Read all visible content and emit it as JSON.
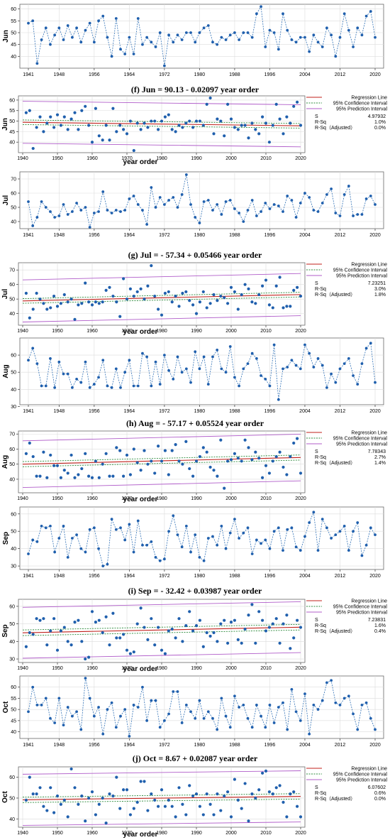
{
  "colors": {
    "series": "#2e6fb5",
    "points": "#1f5fad",
    "regression": "#c0201b",
    "confidence": "#2e8b3d",
    "prediction": "#b05cc9",
    "grid": "#dcdcdc"
  },
  "legend": {
    "regression": "Regression Line",
    "confidence": "95% Confidence Interval",
    "prediction": "95% Prediction Interval"
  },
  "stat_labels": {
    "s": "S",
    "rsq": "R-Sq",
    "rsq_adj": "R-Sq（Adjusted）"
  },
  "year_order_label": "year order",
  "chart_data": [
    {
      "id": "jun",
      "ylabel": "Jun",
      "type": "line",
      "ylim": [
        35,
        62
      ],
      "yticks": [
        40,
        45,
        50,
        55,
        60
      ],
      "xticks": [
        1941,
        1948,
        1956,
        1964,
        1972,
        1980,
        1988,
        1996,
        2004,
        2012,
        2020
      ],
      "x_start": 1941,
      "x_end": 2020,
      "values": [
        54,
        55,
        37,
        47,
        52,
        45,
        49,
        52,
        47,
        53,
        48,
        52,
        46,
        51,
        54,
        46,
        55,
        57,
        48,
        40,
        56,
        43,
        41,
        48,
        41,
        56,
        45,
        48,
        46,
        44,
        50,
        36,
        49,
        46,
        49,
        47,
        50,
        50,
        46,
        50,
        52,
        53,
        46,
        45,
        48,
        47,
        49,
        50,
        47,
        50,
        50,
        48,
        58,
        61,
        44,
        51,
        50,
        43,
        58,
        51,
        47,
        46,
        48,
        48,
        42,
        49,
        46,
        44,
        52,
        49,
        40,
        48,
        58,
        51,
        44,
        52,
        49,
        57,
        59,
        48
      ]
    },
    {
      "id": "jun-reg",
      "type": "scatter",
      "caption_label": "(f)",
      "caption_eq": "Jun = 90.13 - 0.02097 year order",
      "ylim": [
        35,
        62
      ],
      "yticks": [
        40,
        45,
        50,
        55,
        60
      ],
      "xlim": [
        1940,
        2020
      ],
      "xticks": [
        1940,
        1950,
        1960,
        1970,
        1980,
        1990,
        2000,
        2010,
        2020
      ],
      "ref": "jun",
      "intercept": 90.13,
      "slope": -0.02097,
      "ci_half": 1.1,
      "pi_half": 10.0,
      "stats": {
        "s": "4.97932",
        "rsq": "1.0%",
        "rsq_adj": "0.0%"
      }
    },
    {
      "id": "jul",
      "ylabel": "Jul",
      "type": "line",
      "ylim": [
        35,
        75
      ],
      "yticks": [
        40,
        50,
        60,
        70
      ],
      "xticks": [
        1941,
        1948,
        1956,
        1964,
        1972,
        1980,
        1988,
        1996,
        2004,
        2012,
        2020
      ],
      "x_start": 1941,
      "x_end": 2020,
      "values": [
        54,
        37,
        43,
        54,
        50,
        47,
        43,
        44,
        52,
        45,
        47,
        53,
        48,
        50,
        36,
        46,
        47,
        61,
        48,
        46,
        48,
        47,
        48,
        56,
        58,
        52,
        48,
        38,
        64,
        50,
        57,
        52,
        55,
        57,
        50,
        59,
        73,
        52,
        43,
        39,
        54,
        55,
        48,
        52,
        45,
        54,
        55,
        49,
        46,
        40,
        48,
        55,
        44,
        47,
        53,
        49,
        52,
        51,
        47,
        58,
        55,
        43,
        53,
        60,
        57,
        48,
        47,
        53,
        59,
        63,
        46,
        44,
        59,
        65,
        44,
        45,
        45,
        56,
        58,
        52
      ]
    },
    {
      "id": "jul-reg",
      "type": "scatter",
      "caption_label": "(g)",
      "caption_eq": "Jul = - 57.34 + 0.05466 year order",
      "ylim": [
        32,
        75
      ],
      "yticks": [
        40,
        50,
        60,
        70
      ],
      "xlim": [
        1940,
        2020
      ],
      "xticks": [
        1940,
        1950,
        1960,
        1970,
        1980,
        1990,
        2000,
        2010,
        2020
      ],
      "ref": "jul",
      "intercept": -57.34,
      "slope": 0.05466,
      "ci_half": 1.6,
      "pi_half": 14.5,
      "stats": {
        "s": "7.23251",
        "rsq": "3.0%",
        "rsq_adj": "1.8%"
      }
    },
    {
      "id": "aug",
      "ylabel": "Aug",
      "type": "line",
      "ylim": [
        31,
        70
      ],
      "yticks": [
        30,
        40,
        50,
        60
      ],
      "xticks": [
        1941,
        1948,
        1956,
        1964,
        1972,
        1980,
        1988,
        1996,
        2004,
        2012,
        2020
      ],
      "x_start": 1941,
      "x_end": 2020,
      "values": [
        57,
        64,
        55,
        42,
        42,
        58,
        41,
        56,
        49,
        49,
        41,
        46,
        44,
        56,
        41,
        43,
        47,
        57,
        42,
        41,
        52,
        41,
        50,
        57,
        42,
        42,
        61,
        59,
        42,
        56,
        43,
        60,
        51,
        46,
        59,
        50,
        52,
        44,
        62,
        52,
        59,
        43,
        59,
        63,
        52,
        50,
        65,
        47,
        42,
        52,
        55,
        61,
        58,
        48,
        46,
        42,
        66,
        34,
        52,
        53,
        57,
        54,
        52,
        66,
        61,
        53,
        58,
        54,
        41,
        49,
        44,
        52,
        55,
        58,
        48,
        43,
        55,
        64,
        67,
        44
      ]
    },
    {
      "id": "aug-reg",
      "type": "scatter",
      "caption_label": "(h)",
      "caption_eq": "Aug = - 57.17 + 0.05524 year order",
      "ylim": [
        31,
        72
      ],
      "yticks": [
        30,
        40,
        50,
        60,
        70
      ],
      "xlim": [
        1940,
        2020
      ],
      "xticks": [
        1940,
        1950,
        1960,
        1970,
        1980,
        1990,
        2000,
        2010,
        2020
      ],
      "ref": "aug",
      "intercept": -57.17,
      "slope": 0.05524,
      "ci_half": 1.7,
      "pi_half": 15.5,
      "stats": {
        "s": "7.78343",
        "rsq": "2.7%",
        "rsq_adj": "1.4%"
      }
    },
    {
      "id": "sep",
      "ylabel": "Sep",
      "type": "line",
      "ylim": [
        28,
        64
      ],
      "yticks": [
        30,
        40,
        50,
        60
      ],
      "xticks": [
        1941,
        1948,
        1956,
        1964,
        1972,
        1980,
        1988,
        1996,
        2004,
        2012,
        2020
      ],
      "x_start": 1941,
      "x_end": 2020,
      "values": [
        37,
        45,
        44,
        53,
        52,
        53,
        38,
        46,
        53,
        35,
        46,
        48,
        40,
        38,
        51,
        52,
        40,
        30,
        31,
        57,
        51,
        52,
        45,
        54,
        38,
        56,
        42,
        42,
        44,
        35,
        33,
        34,
        50,
        59,
        48,
        41,
        53,
        38,
        48,
        35,
        33,
        46,
        47,
        42,
        53,
        40,
        49,
        57,
        46,
        49,
        52,
        37,
        45,
        43,
        45,
        40,
        50,
        52,
        39,
        51,
        52,
        41,
        39,
        47,
        55,
        61,
        39,
        57,
        52,
        46,
        48,
        50,
        53,
        39,
        50,
        55,
        36,
        42,
        52,
        48
      ]
    },
    {
      "id": "sep-reg",
      "type": "scatter",
      "caption_label": "(i)",
      "caption_eq": "Sep = - 32.42 + 0.03987 year order",
      "ylim": [
        28,
        64
      ],
      "yticks": [
        30,
        40,
        50,
        60
      ],
      "xlim": [
        1940,
        2020
      ],
      "xticks": [
        1940,
        1950,
        1960,
        1970,
        1980,
        1990,
        2000,
        2010,
        2020
      ],
      "ref": "sep",
      "intercept": -32.42,
      "slope": 0.03987,
      "ci_half": 1.6,
      "pi_half": 14.5,
      "stats": {
        "s": "7.23831",
        "rsq": "1.6%",
        "rsq_adj": "0.4%"
      }
    },
    {
      "id": "oct",
      "ylabel": "Oct",
      "type": "line",
      "ylim": [
        37,
        65
      ],
      "yticks": [
        40,
        45,
        50,
        55,
        60
      ],
      "xticks": [
        1941,
        1948,
        1956,
        1964,
        1972,
        1980,
        1988,
        1996,
        2004,
        2012,
        2020
      ],
      "x_start": 1941,
      "x_end": 2020,
      "values": [
        49,
        60,
        52,
        52,
        55,
        46,
        44,
        55,
        43,
        51,
        47,
        49,
        41,
        64,
        55,
        47,
        51,
        39,
        50,
        53,
        42,
        47,
        50,
        38,
        52,
        51,
        60,
        45,
        54,
        54,
        42,
        45,
        48,
        58,
        58,
        44,
        52,
        49,
        46,
        54,
        46,
        49,
        46,
        41,
        55,
        47,
        42,
        56,
        51,
        52,
        46,
        42,
        52,
        47,
        42,
        52,
        44,
        51,
        53,
        41,
        59,
        49,
        45,
        57,
        39,
        52,
        50,
        54,
        62,
        63,
        53,
        52,
        55,
        56,
        48,
        41,
        52,
        53,
        46,
        41
      ]
    },
    {
      "id": "oct-reg",
      "type": "scatter",
      "caption_label": "(j)",
      "caption_eq": "Oct = 8.67 + 0.02087 year order",
      "ylim": [
        36,
        65
      ],
      "yticks": [
        40,
        50,
        60
      ],
      "xlim": [
        1940,
        2020
      ],
      "xticks": [
        1940,
        1950,
        1960,
        1970,
        1980,
        1990,
        2000,
        2010,
        2020
      ],
      "ref": "oct",
      "intercept": 8.67,
      "slope": 0.02087,
      "ci_half": 1.3,
      "pi_half": 12.3,
      "stats": {
        "s": "6.07602",
        "rsq": "0.6%",
        "rsq_adj": "0.0%"
      }
    }
  ]
}
